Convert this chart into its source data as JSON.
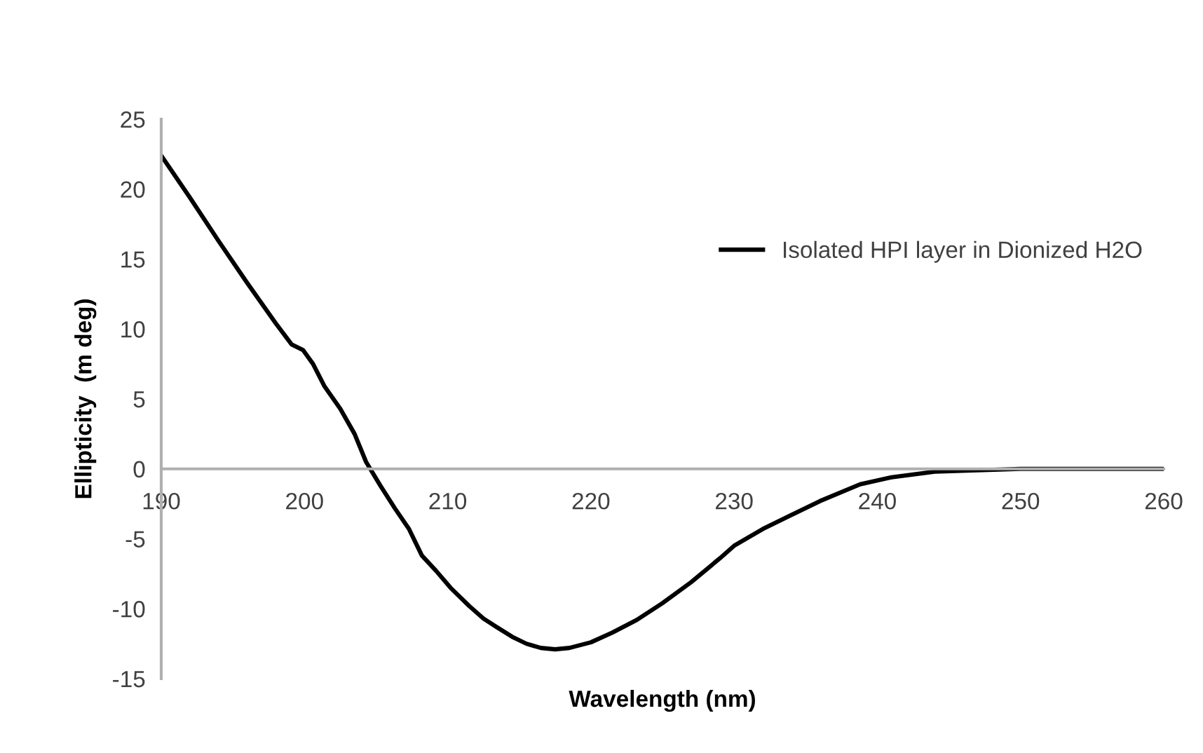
{
  "chart_data": {
    "type": "line",
    "xlabel": "Wavelength (nm)",
    "ylabel": "Ellipticity  (m deg)",
    "xlim": [
      190,
      260
    ],
    "xticks": [
      190,
      200,
      210,
      220,
      230,
      240,
      250,
      260
    ],
    "ylim": [
      -15,
      25
    ],
    "yticks": [
      -15,
      -10,
      -5,
      0,
      5,
      10,
      15,
      20,
      25
    ],
    "grid": false,
    "legend": "top right",
    "marker": "none",
    "line_style": "solid",
    "series": [
      {
        "name": "Isolated HPI layer in Dionized H2O",
        "color": "#000000",
        "x": [
          190,
          192,
          194,
          196,
          198,
          199.1,
          199.9,
          200.6,
          201.4,
          202.5,
          203.5,
          204.3,
          205.3,
          206.3,
          207.3,
          208.2,
          209.2,
          210.2,
          211.5,
          212.5,
          213.4,
          214.5,
          215.5,
          216.5,
          217.5,
          218.5,
          220,
          221.5,
          223.2,
          225,
          227,
          229,
          230,
          232,
          234,
          236,
          238.8,
          241,
          244,
          247,
          250,
          255,
          260
        ],
        "values": [
          22.4,
          19.4,
          16.3,
          13.3,
          10.4,
          8.9,
          8.5,
          7.5,
          5.9,
          4.3,
          2.5,
          0.5,
          -1.2,
          -2.8,
          -4.3,
          -6.2,
          -7.3,
          -8.5,
          -9.8,
          -10.7,
          -11.3,
          -12.0,
          -12.5,
          -12.8,
          -12.9,
          -12.8,
          -12.4,
          -11.7,
          -10.8,
          -9.6,
          -8.1,
          -6.4,
          -5.5,
          -4.3,
          -3.3,
          -2.3,
          -1.1,
          -0.6,
          -0.2,
          -0.1,
          0,
          0,
          0
        ]
      }
    ]
  }
}
